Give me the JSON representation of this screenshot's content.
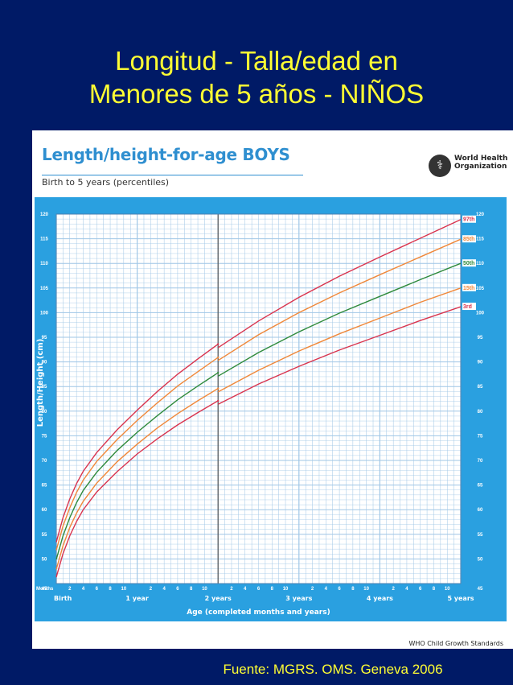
{
  "slide": {
    "title_line1": "Longitud - Talla/edad en",
    "title_line2": "Menores de 5 años - NIÑOS",
    "source": "Fuente: MGRS. OMS. Geneva 2006"
  },
  "header": {
    "who_name": "World Health Organization",
    "footer": "WHO Child Growth Standards"
  },
  "colors": {
    "background": "#001a66",
    "title": "#ffff33",
    "panel": "#2aa0e0",
    "p3": "#d9344e",
    "p15": "#f0883a",
    "p50": "#2f8a3c",
    "p85": "#f0883a",
    "p97": "#d9344e"
  },
  "chart_data": {
    "type": "line",
    "title": "Length/height-for-age BOYS",
    "subtitle": "Birth to 5 years (percentiles)",
    "xlabel": "Age (completed months and years)",
    "ylabel": "Length/Height (cm)",
    "xlim": [
      0,
      60
    ],
    "ylim": [
      45,
      120
    ],
    "yticks": [
      45,
      50,
      55,
      60,
      65,
      70,
      75,
      80,
      85,
      90,
      95,
      100,
      105,
      110,
      115,
      120
    ],
    "months_label": "Months",
    "month_tick_labels": [
      "2",
      "4",
      "6",
      "8",
      "10"
    ],
    "year_labels": [
      {
        "x": 0,
        "label": "Birth"
      },
      {
        "x": 12,
        "label": "1 year"
      },
      {
        "x": 24,
        "label": "2 years"
      },
      {
        "x": 36,
        "label": "3 years"
      },
      {
        "x": 48,
        "label": "4 years"
      },
      {
        "x": 60,
        "label": "5 years"
      }
    ],
    "grid": true,
    "x": [
      0,
      1,
      2,
      3,
      4,
      6,
      9,
      12,
      15,
      18,
      21,
      24,
      24,
      30,
      36,
      42,
      48,
      54,
      60
    ],
    "series": [
      {
        "name": "3rd",
        "values": [
          46.3,
          51.1,
          54.7,
          57.6,
          60.0,
          63.6,
          67.7,
          71.3,
          74.4,
          77.2,
          79.7,
          82.1,
          81.4,
          85.5,
          89.1,
          92.4,
          95.4,
          98.4,
          101.2
        ]
      },
      {
        "name": "15th",
        "values": [
          47.9,
          52.7,
          56.4,
          59.3,
          61.7,
          65.4,
          69.7,
          73.3,
          76.6,
          79.5,
          82.1,
          84.6,
          83.9,
          88.3,
          92.2,
          95.7,
          98.9,
          102.1,
          105.0
        ]
      },
      {
        "name": "50th",
        "values": [
          49.9,
          54.7,
          58.4,
          61.4,
          63.9,
          67.6,
          72.0,
          75.7,
          79.1,
          82.3,
          85.1,
          87.8,
          87.1,
          91.9,
          96.1,
          99.9,
          103.3,
          106.7,
          110.0
        ]
      },
      {
        "name": "85th",
        "values": [
          51.8,
          56.7,
          60.4,
          63.5,
          66.0,
          69.8,
          74.2,
          78.1,
          81.7,
          85.1,
          88.0,
          90.9,
          90.3,
          95.5,
          100.0,
          104.0,
          107.7,
          111.3,
          114.9
        ]
      },
      {
        "name": "97th",
        "values": [
          53.4,
          58.4,
          62.2,
          65.3,
          67.8,
          71.6,
          76.2,
          80.2,
          84.0,
          87.5,
          90.6,
          93.6,
          92.9,
          98.3,
          103.1,
          107.4,
          111.3,
          115.1,
          118.9
        ]
      }
    ]
  }
}
